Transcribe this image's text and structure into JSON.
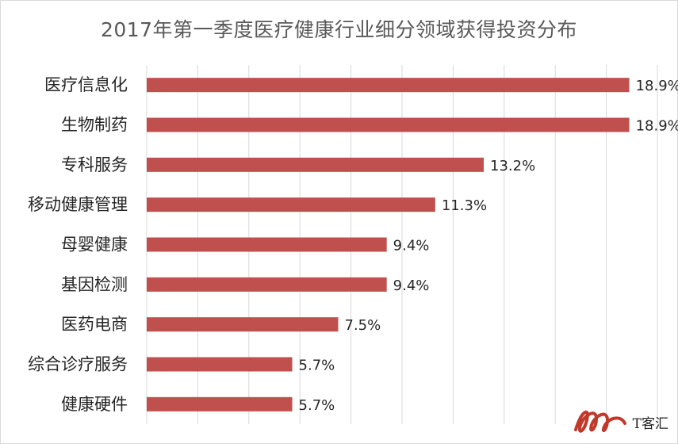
{
  "chart_data": {
    "type": "bar",
    "orientation": "horizontal",
    "title": "2017年第一季度医疗健康行业细分领域获得投资分布",
    "categories": [
      "医疗信息化",
      "生物制药",
      "专科服务",
      "移动健康管理",
      "母婴健康",
      "基因检测",
      "医药电商",
      "综合诊疗服务",
      "健康硬件"
    ],
    "values": [
      18.9,
      18.9,
      13.2,
      11.3,
      9.4,
      9.4,
      7.5,
      5.7,
      5.7
    ],
    "value_labels": [
      "18.9%",
      "18.9%",
      "13.2%",
      "11.3%",
      "9.4%",
      "9.4%",
      "7.5%",
      "5.7%",
      "5.7%"
    ],
    "xlim": [
      0,
      20
    ],
    "grid": true,
    "legend": "none",
    "bar_color": "#c0504d"
  },
  "watermark": {
    "text": "T客汇",
    "logo": "tkehui-logo-icon",
    "logo_color": "#c0392b"
  }
}
